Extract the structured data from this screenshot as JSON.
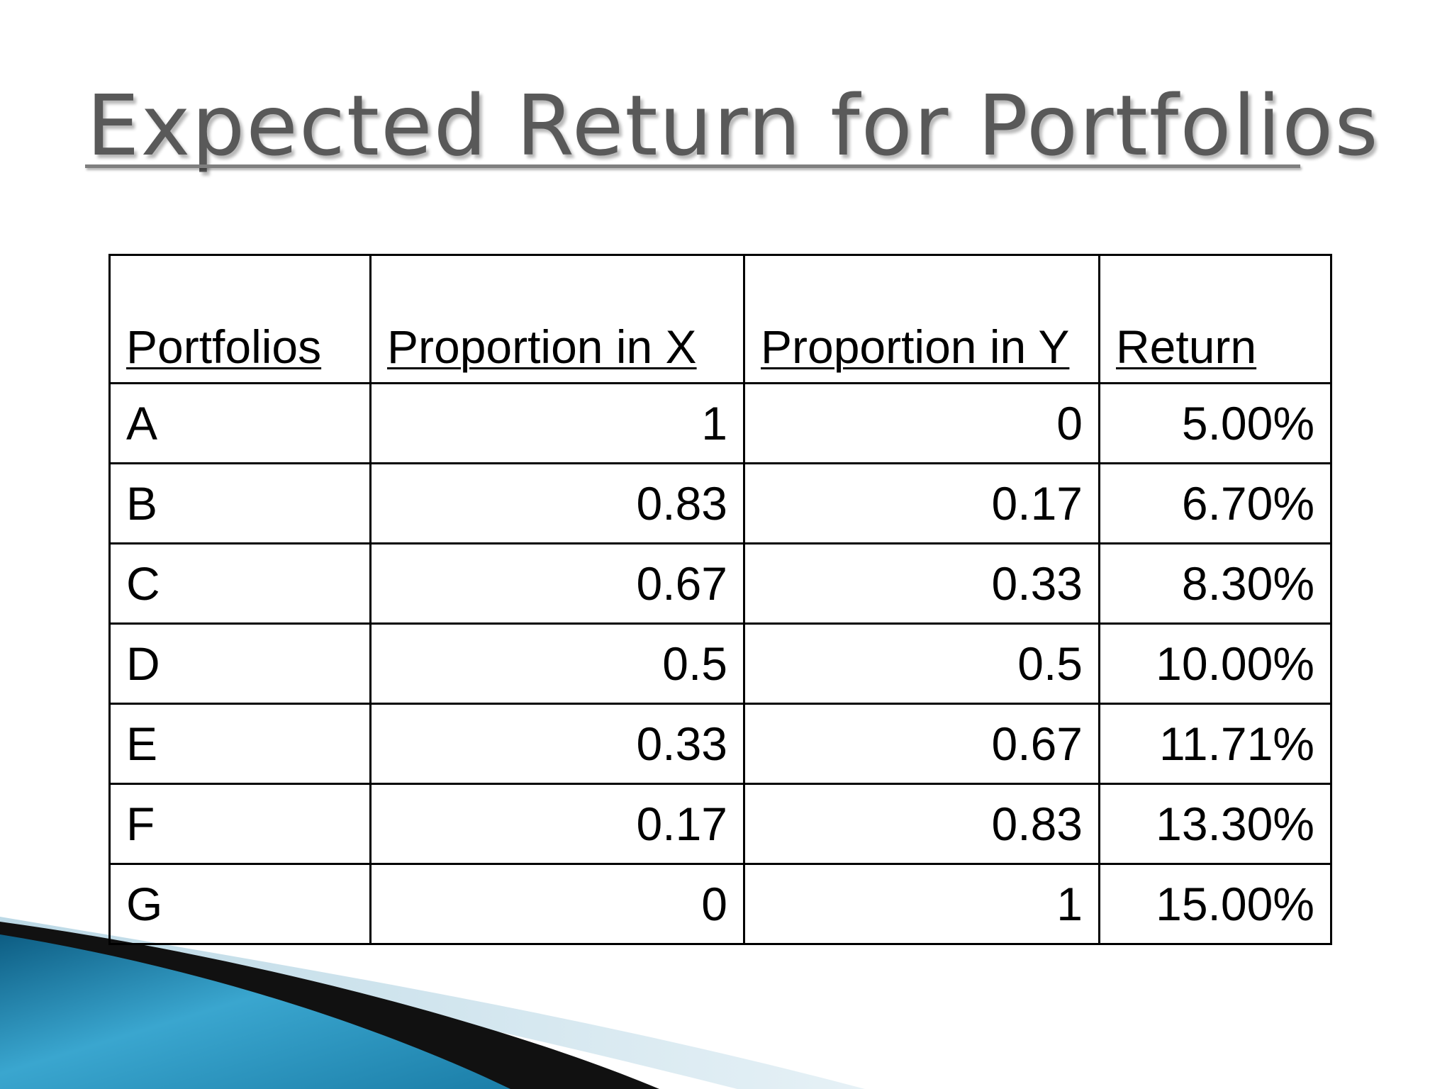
{
  "slide": {
    "title": "Expected Return for Portfolios"
  },
  "table": {
    "headers": [
      "Portfolios",
      "Proportion in X",
      "Proportion in Y",
      "Return"
    ],
    "rows": [
      {
        "portfolio": "A",
        "x": "1",
        "y": "0",
        "return": "5.00%"
      },
      {
        "portfolio": "B",
        "x": "0.83",
        "y": "0.17",
        "return": "6.70%"
      },
      {
        "portfolio": "C",
        "x": "0.67",
        "y": "0.33",
        "return": "8.30%"
      },
      {
        "portfolio": "D",
        "x": "0.5",
        "y": "0.5",
        "return": "10.00%"
      },
      {
        "portfolio": "E",
        "x": "0.33",
        "y": "0.67",
        "return": "11.71%"
      },
      {
        "portfolio": "F",
        "x": "0.17",
        "y": "0.83",
        "return": "13.30%"
      },
      {
        "portfolio": "G",
        "x": "0",
        "y": "1",
        "return": "15.00%"
      }
    ]
  },
  "colors": {
    "title": "#595959",
    "accent_blue": "#1e7fa8",
    "accent_dark": "#111111",
    "accent_light": "#d6e8f0"
  }
}
